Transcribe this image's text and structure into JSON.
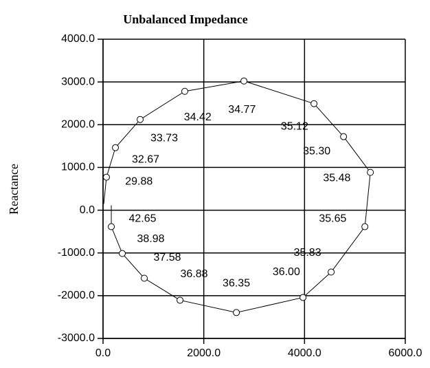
{
  "chart_data": {
    "type": "line",
    "title": "Unbalanced Impedance",
    "y_label": "Reactance",
    "color": "#000000",
    "grid": true,
    "xlim": [
      0,
      6000
    ],
    "ylim": [
      -3000,
      4000
    ],
    "xticks": [
      {
        "value": 0,
        "label": "0.0"
      },
      {
        "value": 2000,
        "label": "2000.0"
      },
      {
        "value": 4000,
        "label": "4000.0"
      },
      {
        "value": 6000,
        "label": "6000.0"
      }
    ],
    "yticks": [
      {
        "value": -3000,
        "label": "-3000.0"
      },
      {
        "value": -2000,
        "label": "-2000.0"
      },
      {
        "value": -1000,
        "label": "-1000.0"
      },
      {
        "value": 0,
        "label": "0.0"
      },
      {
        "value": 1000,
        "label": "1000.0"
      },
      {
        "value": 2000,
        "label": "2000.0"
      },
      {
        "value": 3000,
        "label": "3000.0"
      },
      {
        "value": 4000,
        "label": "4000.0"
      }
    ],
    "x": [
      14,
      68,
      246,
      737,
      1623,
      2797,
      4188,
      4775,
      5307,
      5198,
      4529,
      3970,
      2647,
      1528,
      819,
      382,
      164,
      164
    ],
    "y": [
      145,
      772,
      1463,
      2122,
      2781,
      3022,
      2492,
      1720,
      884,
      -386,
      -1447,
      -2042,
      -2395,
      -2106,
      -1592,
      -1013,
      -386,
      113
    ],
    "point_labels": [
      null,
      "29.88",
      "32.67",
      "33.73",
      "34.42",
      "34.77",
      "35.12",
      "35.30",
      "35.48",
      "35.65",
      "35.83",
      "36.00",
      "36.35",
      "36.88",
      "37.58",
      "38.98",
      "42.65",
      null
    ]
  }
}
